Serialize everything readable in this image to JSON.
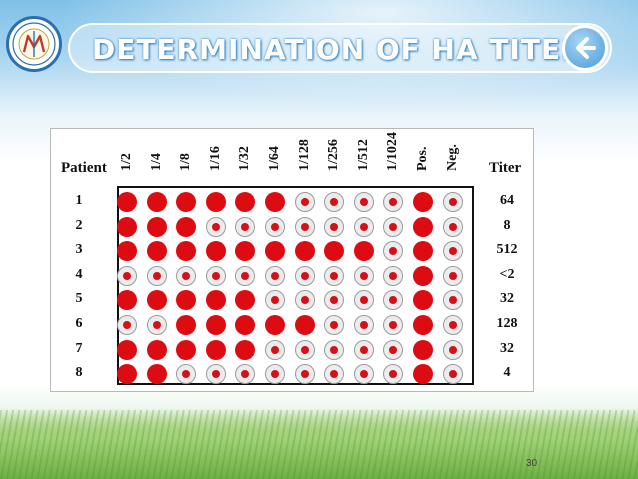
{
  "slide": {
    "title": "DETERMINATION OF HA TITERS",
    "page_number": "30",
    "logo_icon": "university-seal-icon",
    "back_icon": "back-arrow-icon",
    "accent_color": "#2d7fc0"
  },
  "figure": {
    "patient_label": "Patient",
    "titer_label": "Titer",
    "columns": [
      "1/2",
      "1/4",
      "1/8",
      "1/16",
      "1/32",
      "1/64",
      "1/128",
      "1/256",
      "1/512",
      "1/1024",
      "Pos.",
      "Neg."
    ],
    "rows": [
      {
        "patient": "1",
        "titer": "64",
        "wells": [
          1,
          1,
          1,
          1,
          1,
          1,
          0,
          0,
          0,
          0,
          1,
          0
        ]
      },
      {
        "patient": "2",
        "titer": "8",
        "wells": [
          1,
          1,
          1,
          0,
          0,
          0,
          0,
          0,
          0,
          0,
          1,
          0
        ]
      },
      {
        "patient": "3",
        "titer": "512",
        "wells": [
          1,
          1,
          1,
          1,
          1,
          1,
          1,
          1,
          1,
          0,
          1,
          0
        ]
      },
      {
        "patient": "4",
        "titer": "<2",
        "wells": [
          0,
          0,
          0,
          0,
          0,
          0,
          0,
          0,
          0,
          0,
          1,
          0
        ]
      },
      {
        "patient": "5",
        "titer": "32",
        "wells": [
          1,
          1,
          1,
          1,
          1,
          0,
          0,
          0,
          0,
          0,
          1,
          0
        ]
      },
      {
        "patient": "6",
        "titer": "128",
        "wells": [
          0,
          0,
          1,
          1,
          1,
          1,
          1,
          0,
          0,
          0,
          1,
          0
        ]
      },
      {
        "patient": "7",
        "titer": "32",
        "wells": [
          1,
          1,
          1,
          1,
          1,
          0,
          0,
          0,
          0,
          0,
          1,
          0
        ]
      },
      {
        "patient": "8",
        "titer": "4",
        "wells": [
          1,
          1,
          0,
          0,
          0,
          0,
          0,
          0,
          0,
          0,
          1,
          0
        ]
      }
    ],
    "well_colors": {
      "agglutinated": "#dd0c12",
      "button": "#d61018",
      "clear": "#ececec"
    }
  }
}
